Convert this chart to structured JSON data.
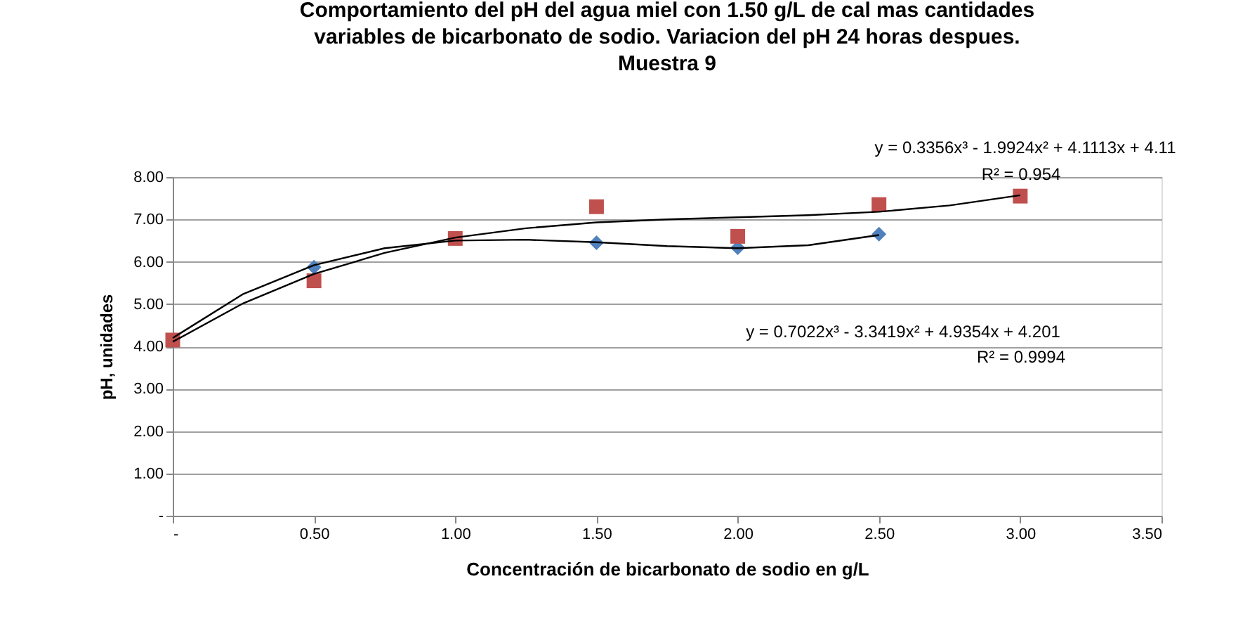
{
  "chart_data": {
    "type": "scatter",
    "title": "Comportamiento del pH del agua miel con 1.50 g/L de cal mas cantidades variables de bicarbonato de sodio. Variacion del pH 24 horas despues. Muestra 9",
    "xlabel": "Concentración de bicarbonato  de sodio en g/L",
    "ylabel": "pH, unidades",
    "series": [
      {
        "marker": "diamond",
        "color": "#4f81bd",
        "x": [
          0.5,
          1.5,
          2.0,
          2.5
        ],
        "values": [
          5.87,
          6.45,
          6.33,
          6.65
        ]
      },
      {
        "marker": "square",
        "color": "#c0504d",
        "x": [
          0,
          0.5,
          1.0,
          1.5,
          2.0,
          2.5,
          3.0
        ],
        "values": [
          4.15,
          5.55,
          6.55,
          7.3,
          6.6,
          7.35,
          7.55
        ]
      },
      {
        "type": "line",
        "marker": "none",
        "color": "#000000",
        "x": [
          0,
          0.25,
          0.5,
          0.75,
          1.0,
          1.25,
          1.5,
          1.75,
          2.0,
          2.25,
          2.5
        ],
        "values": [
          4.2,
          5.24,
          5.92,
          6.32,
          6.5,
          6.52,
          6.46,
          6.37,
          6.32,
          6.39,
          6.63
        ]
      },
      {
        "type": "line",
        "marker": "none",
        "color": "#000000",
        "x": [
          0,
          0.25,
          0.5,
          0.75,
          1.0,
          1.25,
          1.5,
          1.75,
          2.0,
          2.25,
          2.5,
          2.75,
          3.0
        ],
        "values": [
          4.11,
          5.02,
          5.71,
          6.21,
          6.57,
          6.79,
          6.93,
          7.0,
          7.05,
          7.1,
          7.18,
          7.33,
          7.57
        ]
      }
    ],
    "xlim": [
      0,
      3.5
    ],
    "xticks": [
      {
        "value": 0,
        "label": "-"
      },
      {
        "value": 0.5,
        "label": "0.50"
      },
      {
        "value": 1.0,
        "label": "1.00"
      },
      {
        "value": 1.5,
        "label": "1.50"
      },
      {
        "value": 2.0,
        "label": "2.00"
      },
      {
        "value": 2.5,
        "label": "2.50"
      },
      {
        "value": 3.0,
        "label": "3.00"
      },
      {
        "value": 3.5,
        "label": "3.50"
      }
    ],
    "ylim": [
      0,
      8
    ],
    "yticks": [
      {
        "value": 0,
        "label": "-"
      },
      {
        "value": 1,
        "label": "1.00"
      },
      {
        "value": 2,
        "label": "2.00"
      },
      {
        "value": 3,
        "label": "3.00"
      },
      {
        "value": 4,
        "label": "4.00"
      },
      {
        "value": 5,
        "label": "5.00"
      },
      {
        "value": 6,
        "label": "6.00"
      },
      {
        "value": 7,
        "label": "7.00"
      },
      {
        "value": 8,
        "label": "8.00"
      }
    ],
    "grid": "y",
    "annotations": [
      "y = 0.3356x³ - 1.9924x² + 4.1113x + 4.11",
      "R² = 0.954",
      "y = 0.7022x³ - 3.3419x² + 4.9354x + 4.201",
      "R² = 0.9994"
    ]
  }
}
